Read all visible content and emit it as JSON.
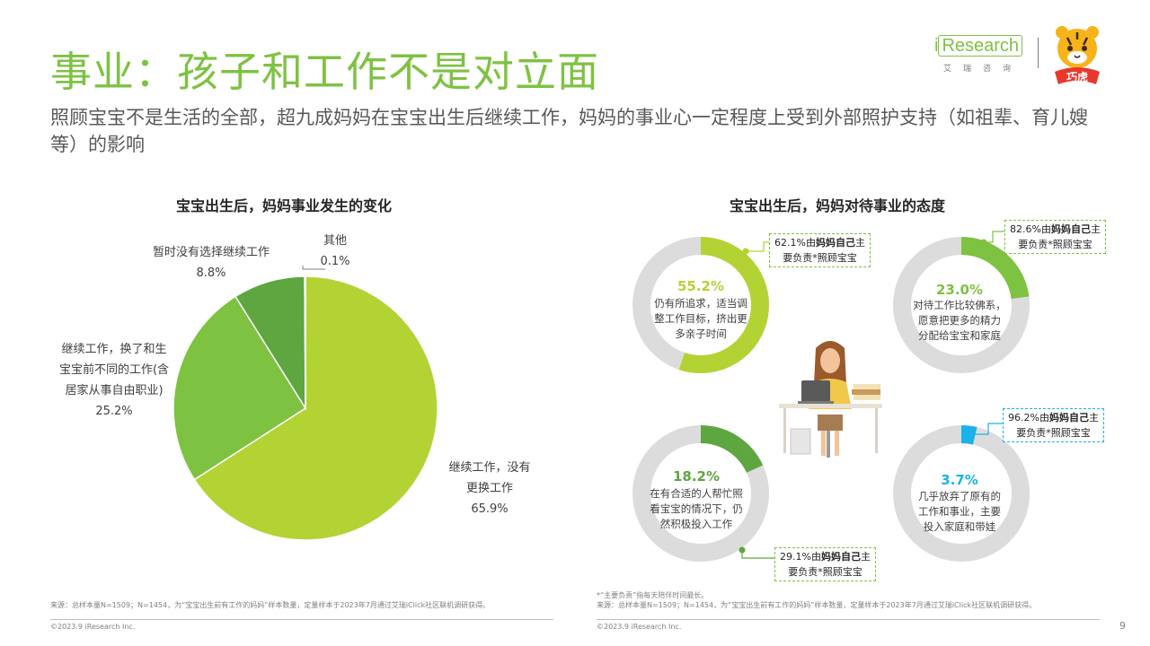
{
  "header": {
    "title": "事业：孩子和工作不是对立面",
    "subtitle": "照顾宝宝不是生活的全部，超九成妈妈在宝宝出生后继续工作，妈妈的事业心一定程度上受到外部照护支持（如祖辈、育儿嫂等）的影响",
    "logo_text_main": "Research",
    "logo_text_prefix": "i",
    "logo_text_cn": "艾瑞咨询",
    "partner_logo_text": "巧虎"
  },
  "chart_data": [
    {
      "type": "pie",
      "title": "宝宝出生后，妈妈事业发生的变化",
      "categories": [
        "继续工作，没有更换工作",
        "继续工作，换了和生宝宝前不同的工作(含居家从事自由职业)",
        "暂时没有选择继续工作",
        "其他"
      ],
      "values": [
        65.9,
        25.2,
        8.8,
        0.1
      ],
      "colors": [
        "#b3d335",
        "#7ec242",
        "#5ea640",
        "#2e9fd8"
      ],
      "labels": [
        {
          "lines": [
            "继续工作，没有",
            "更换工作"
          ],
          "pct": "65.9%"
        },
        {
          "lines": [
            "继续工作，换了和生",
            "宝宝前不同的工作(含",
            "居家从事自由职业)"
          ],
          "pct": "25.2%"
        },
        {
          "lines": [
            "暂时没有选择继续工作"
          ],
          "pct": "8.8%"
        },
        {
          "lines": [
            "其他"
          ],
          "pct": "0.1%"
        }
      ]
    },
    {
      "type": "donut",
      "title": "宝宝出生后，妈妈对待事业的态度",
      "categories": [
        "仍有所追求，适当调整工作目标，挤出更多亲子时间",
        "对待工作比较佛系，愿意把更多的精力分配给宝宝和家庭",
        "在有合适的人帮忙照看宝宝的情况下，仍然积极投入工作",
        "几乎放弃了原有的工作和事业，主要投入家庭和带娃"
      ],
      "values": [
        55.2,
        23.0,
        18.2,
        3.7
      ],
      "colors": [
        "#b3d335",
        "#7ec242",
        "#5ea640",
        "#1ab2e8"
      ],
      "items": [
        {
          "pct": "55.2%",
          "desc": [
            "仍有所追求，适当调",
            "整工作目标，挤出更",
            "多亲子时间"
          ],
          "callout_pct": "62.1%由",
          "callout_bold": "妈妈自己",
          "callout_rest": "主",
          "callout_line2": "要负责*照顾宝宝"
        },
        {
          "pct": "23.0%",
          "desc": [
            "对待工作比较佛系，",
            "愿意把更多的精力",
            "分配给宝宝和家庭"
          ],
          "callout_pct": "82.6%由",
          "callout_bold": "妈妈自己",
          "callout_rest": "主",
          "callout_line2": "要负责*照顾宝宝"
        },
        {
          "pct": "18.2%",
          "desc": [
            "在有合适的人帮忙照",
            "看宝宝的情况下，仍",
            "然积极投入工作"
          ],
          "callout_pct": "29.1%由",
          "callout_bold": "妈妈自己",
          "callout_rest": "主",
          "callout_line2": "要负责*照顾宝宝"
        },
        {
          "pct": "3.7%",
          "desc": [
            "几乎放弃了原有的",
            "工作和事业，主要",
            "投入家庭和带娃"
          ],
          "callout_pct": "96.2%由",
          "callout_bold": "妈妈自己",
          "callout_rest": "主",
          "callout_line2": "要负责*照顾宝宝"
        }
      ]
    }
  ],
  "footer": {
    "left_source": "来源：总样本量N=1509；N=1454，为“宝宝出生前有工作的妈妈”样本数量，定量样本于2023年7月通过艾瑞iClick社区联机调研获得。",
    "left_copyright": "©2023.9 iResearch Inc.",
    "right_note": "*“主要负责”指每天陪伴时间最长。",
    "right_source": "来源：总样本量N=1509；N=1454，为“宝宝出生前有工作的妈妈”样本数量，定量样本于2023年7月通过艾瑞iClick社区联机调研获得。",
    "right_copyright": "©2023.9 iResearch Inc.",
    "page_number": "9"
  }
}
